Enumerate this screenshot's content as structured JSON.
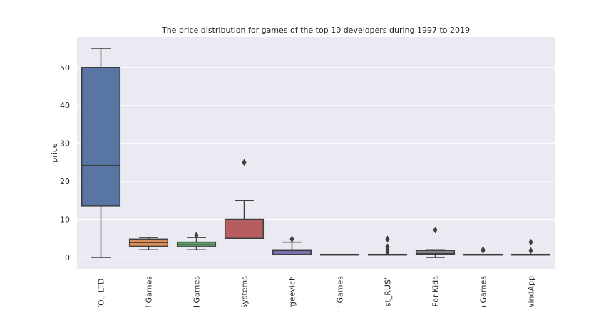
{
  "chart_data": {
    "type": "box",
    "title": "The price distribution for games of the top 10 developers during 1997 to 2019",
    "xlabel": "",
    "ylabel": "price",
    "ylim": [
      -3,
      58
    ],
    "yticks": [
      0,
      10,
      20,
      30,
      40,
      50
    ],
    "grid": true,
    "legend": "none",
    "background": "#eaeaf2",
    "categories": [
      {
        "label": "CO., LTD.",
        "color": "#5875a4",
        "whislo": 0,
        "q1": 13.5,
        "med": 24.2,
        "q3": 50,
        "whishi": 55,
        "fliers": []
      },
      {
        "label": "of Games",
        "color": "#dc8d58",
        "whislo": 2,
        "q1": 2.9,
        "med": 3.9,
        "q3": 4.8,
        "whishi": 5.2,
        "fliers": []
      },
      {
        "label": "d Games",
        "color": "#5f9e6e",
        "whislo": 2,
        "q1": 2.8,
        "med": 3.3,
        "q3": 4.0,
        "whishi": 5.2,
        "fliers": [
          5.8
        ]
      },
      {
        "label": "Systems",
        "color": "#b65d60",
        "whislo": 5,
        "q1": 5,
        "med": 5,
        "q3": 10,
        "whishi": 15,
        "fliers": [
          25
        ]
      },
      {
        "label": "ergeevich",
        "color": "#8172b2",
        "whislo": 0.8,
        "q1": 0.8,
        "med": 1.8,
        "q3": 2.0,
        "whishi": 4.0,
        "fliers": [
          4.8
        ]
      },
      {
        "label": "r Games",
        "color": "#947a61",
        "whislo": 0.8,
        "q1": 0.8,
        "med": 0.8,
        "q3": 0.8,
        "whishi": 0.8,
        "fliers": []
      },
      {
        "label": "st_RUS\"",
        "color": "#d59cc6",
        "whislo": 0.8,
        "q1": 0.8,
        "med": 0.8,
        "q3": 0.8,
        "whishi": 0.8,
        "fliers": [
          1.5,
          2.0,
          2.8,
          4.8
        ]
      },
      {
        "label": "For Kids",
        "color": "#8c8c8c",
        "whislo": 0,
        "q1": 0.8,
        "med": 1.0,
        "q3": 1.8,
        "whishi": 2.0,
        "fliers": [
          7.2
        ]
      },
      {
        "label": "n Games",
        "color": "#ccb974",
        "whislo": 0.8,
        "q1": 0.8,
        "med": 0.8,
        "q3": 0.8,
        "whishi": 0.8,
        "fliers": [
          1.8,
          2.0
        ]
      },
      {
        "label": "windApp",
        "color": "#64b5cd",
        "whislo": 0.8,
        "q1": 0.8,
        "med": 0.8,
        "q3": 0.8,
        "whishi": 0.8,
        "fliers": [
          1.8,
          4.0
        ]
      }
    ]
  }
}
